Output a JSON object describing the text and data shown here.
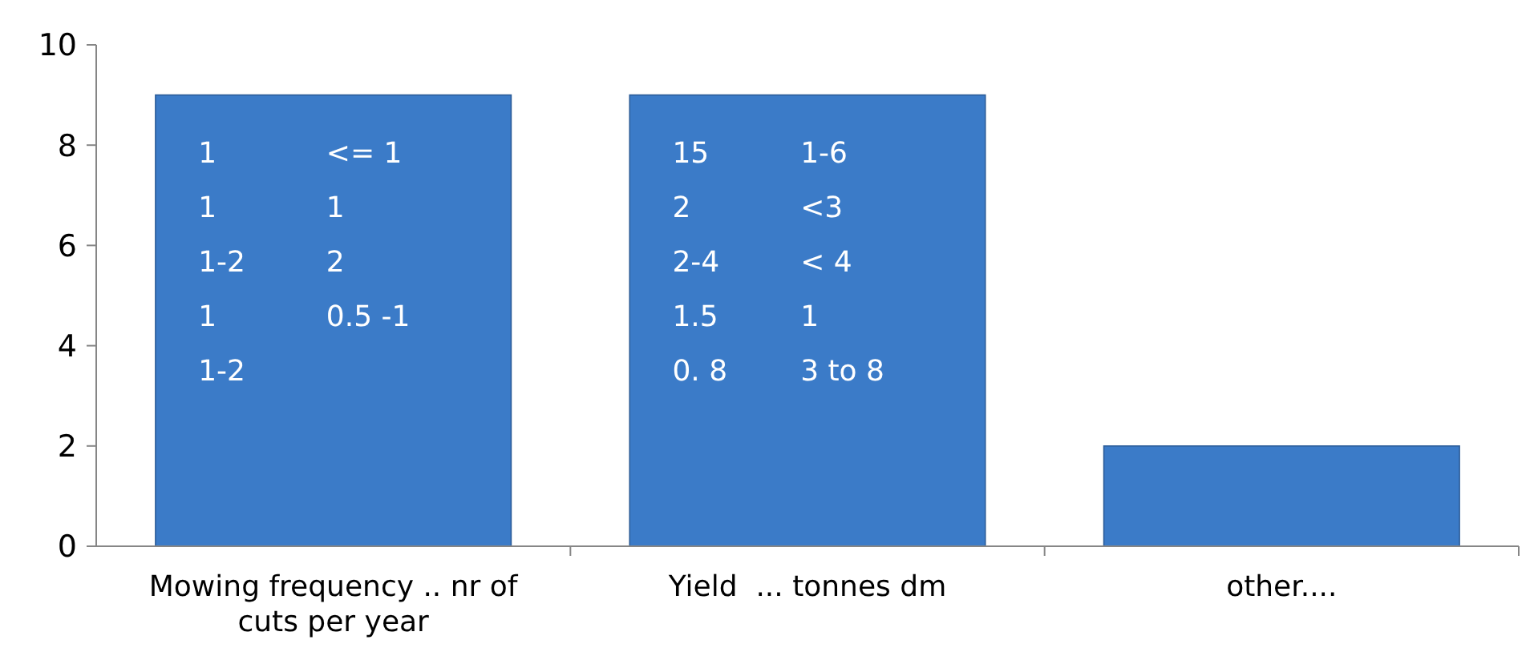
{
  "chart_data": {
    "type": "bar",
    "categories": [
      "Mowing frequency .. nr of cuts per year",
      "Yield  ... tonnes dm",
      "other...."
    ],
    "values": [
      9,
      9,
      2
    ],
    "color": "#3b7bc8",
    "ylim": [
      0,
      10
    ],
    "yticks": [
      0,
      2,
      4,
      6,
      8,
      10
    ],
    "grid": false,
    "annotations": [
      "1\n1\n1-2\n1\n1-2",
      "<= 1\n1\n2\n0.5 -1",
      "15\n2\n2-4\n1.5\n0. 8",
      "1-6\n<3\n< 4\n1\n3 to 8"
    ]
  }
}
